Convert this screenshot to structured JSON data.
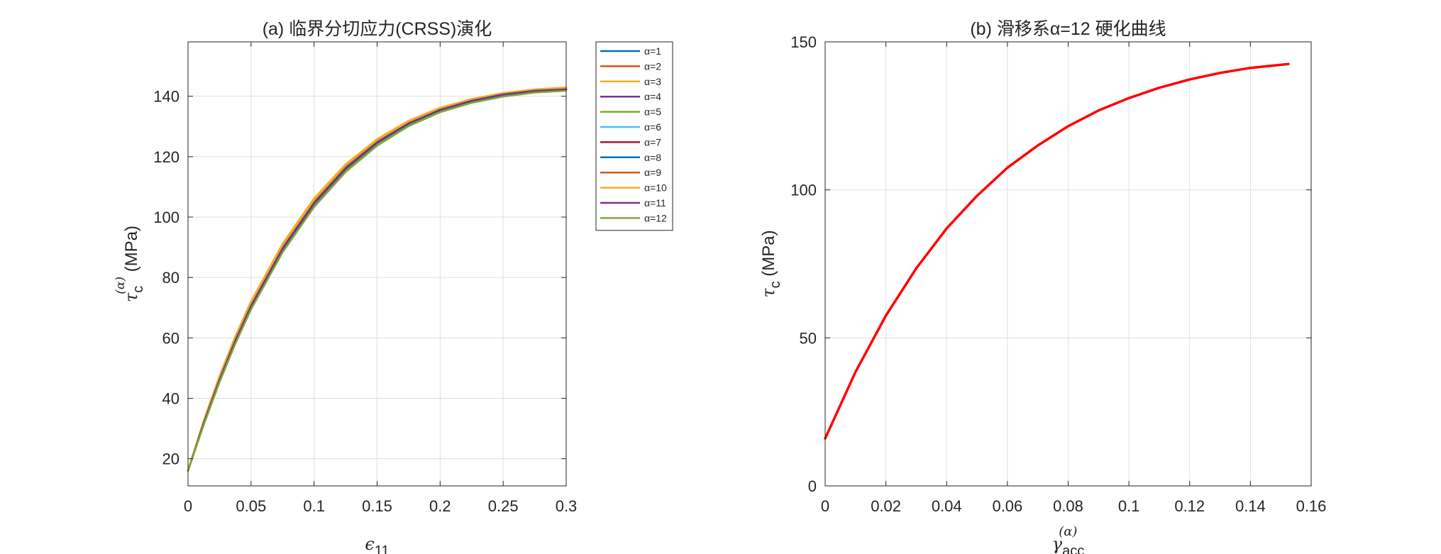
{
  "chart_data": [
    {
      "id": "a",
      "type": "line",
      "title": "(a) 临界分切应力(CRSS)演化",
      "xlabel": {
        "symbol": "ϵ",
        "sub": "11",
        "sup": ""
      },
      "ylabel": {
        "symbol": "τ",
        "sub": "c",
        "sup": "(α)",
        "unit": " (MPa)"
      },
      "xlim": [
        0,
        0.3
      ],
      "ylim": [
        11,
        158
      ],
      "xticks": [
        0,
        0.05,
        0.1,
        0.15,
        0.2,
        0.25,
        0.3
      ],
      "xtick_labels": [
        "0",
        "0.05",
        "0.1",
        "0.15",
        "0.2",
        "0.25",
        "0.3"
      ],
      "yticks": [
        20,
        40,
        60,
        80,
        100,
        120,
        140
      ],
      "ytick_labels": [
        "20",
        "40",
        "60",
        "80",
        "100",
        "120",
        "140"
      ],
      "grid": true,
      "legend_position": "outside-top-right",
      "x": [
        0,
        0.0125,
        0.025,
        0.0375,
        0.05,
        0.075,
        0.1,
        0.125,
        0.15,
        0.175,
        0.2,
        0.225,
        0.25,
        0.275,
        0.3
      ],
      "series": [
        {
          "name": "α=1",
          "color": "#0072BD",
          "values": [
            16,
            32,
            46.5,
            59.5,
            71,
            90,
            105,
            116.5,
            125,
            131.3,
            135.7,
            138.7,
            140.8,
            142,
            142.5
          ]
        },
        {
          "name": "α=2",
          "color": "#D95319",
          "values": [
            16,
            32.4,
            47,
            60,
            71.6,
            90.6,
            105.6,
            117,
            125.4,
            131.6,
            135.9,
            138.9,
            140.9,
            142.1,
            142.7
          ]
        },
        {
          "name": "α=3",
          "color": "#EDB120",
          "values": [
            16,
            32.7,
            47.4,
            60.5,
            72.1,
            91.2,
            106.2,
            117.5,
            125.8,
            131.9,
            136.2,
            139.1,
            141.1,
            142.3,
            142.9
          ]
        },
        {
          "name": "α=4",
          "color": "#7E2F8E",
          "values": [
            16,
            31.8,
            46.1,
            59,
            70.5,
            89.5,
            104.5,
            116,
            124.6,
            131,
            135.5,
            138.5,
            140.6,
            141.8,
            142.3
          ]
        },
        {
          "name": "α=5",
          "color": "#77AC30",
          "values": [
            16,
            31.5,
            45.7,
            58.5,
            70,
            89,
            104,
            115.6,
            124.3,
            130.7,
            135.2,
            138.3,
            140.4,
            141.6,
            142.1
          ]
        },
        {
          "name": "α=6",
          "color": "#4DBEEE",
          "values": [
            16,
            31.9,
            46.3,
            59.2,
            70.8,
            89.8,
            104.8,
            116.3,
            124.8,
            131.1,
            135.6,
            138.6,
            140.7,
            141.9,
            142.4
          ]
        },
        {
          "name": "α=7",
          "color": "#A2142F",
          "values": [
            16,
            32.1,
            46.6,
            59.6,
            71.2,
            90.2,
            105.2,
            116.7,
            125.1,
            131.4,
            135.8,
            138.8,
            140.8,
            142,
            142.6
          ]
        },
        {
          "name": "α=8",
          "color": "#0072BD",
          "values": [
            16,
            31.7,
            46,
            58.9,
            70.4,
            89.4,
            104.4,
            115.9,
            124.5,
            130.9,
            135.4,
            138.4,
            140.5,
            141.7,
            142.2
          ]
        },
        {
          "name": "α=9",
          "color": "#D95319",
          "values": [
            16,
            32.3,
            46.8,
            59.8,
            71.4,
            90.4,
            105.4,
            116.8,
            125.2,
            131.5,
            135.8,
            138.8,
            140.9,
            142.1,
            142.6
          ]
        },
        {
          "name": "α=10",
          "color": "#EDB120",
          "values": [
            16,
            32.5,
            47.2,
            60.2,
            71.8,
            90.8,
            105.8,
            117.2,
            125.6,
            131.7,
            136,
            139,
            141,
            142.2,
            142.8
          ]
        },
        {
          "name": "α=11",
          "color": "#7E2F8E",
          "values": [
            16,
            31.9,
            46.2,
            59.1,
            70.6,
            89.6,
            104.6,
            116.1,
            124.7,
            131,
            135.5,
            138.5,
            140.6,
            141.8,
            142.3
          ]
        },
        {
          "name": "α=12",
          "color": "#77AC30",
          "values": [
            16,
            31.2,
            45.3,
            58,
            69.4,
            88.3,
            103.3,
            114.9,
            123.6,
            130.1,
            134.7,
            137.8,
            139.9,
            141.2,
            141.8
          ]
        }
      ]
    },
    {
      "id": "b",
      "type": "line",
      "title": "(b) 滑移系α=12 硬化曲线",
      "xlabel": {
        "symbol": "γ",
        "sub": "acc",
        "sup": "(α)",
        "unit": ""
      },
      "ylabel": {
        "symbol": "τ",
        "sub": "c",
        "sup": "",
        "unit": " (MPa)"
      },
      "xlim": [
        0,
        0.16
      ],
      "ylim": [
        0,
        150
      ],
      "xticks": [
        0,
        0.02,
        0.04,
        0.06,
        0.08,
        0.1,
        0.12,
        0.14,
        0.16
      ],
      "xtick_labels": [
        "0",
        "0.02",
        "0.04",
        "0.06",
        "0.08",
        "0.1",
        "0.12",
        "0.14",
        "0.16"
      ],
      "yticks": [
        0,
        50,
        100,
        150
      ],
      "ytick_labels": [
        "0",
        "50",
        "100",
        "150"
      ],
      "grid": true,
      "series": [
        {
          "name": "",
          "color": "#FF0000",
          "x": [
            0,
            0.01,
            0.02,
            0.03,
            0.04,
            0.05,
            0.06,
            0.07,
            0.08,
            0.09,
            0.1,
            0.11,
            0.12,
            0.13,
            0.14,
            0.1525
          ],
          "values": [
            16,
            38.5,
            57.5,
            73.5,
            87,
            98,
            107.5,
            115,
            121.5,
            126.8,
            131,
            134.5,
            137.3,
            139.5,
            141.2,
            142.5
          ]
        }
      ]
    }
  ]
}
